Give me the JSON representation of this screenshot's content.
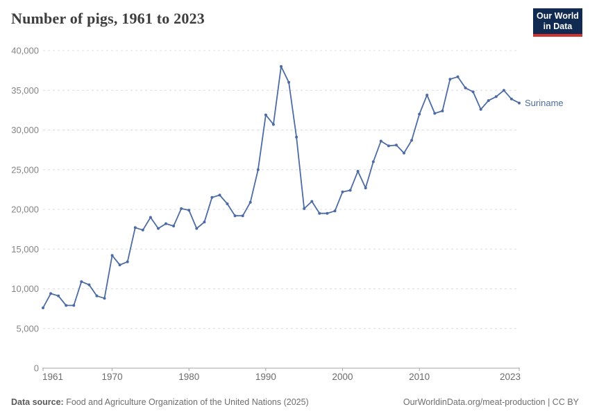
{
  "header": {
    "title": "Number of pigs, 1961 to 2023"
  },
  "logo": {
    "line1": "Our World",
    "line2": "in Data",
    "bg_color": "#102a52",
    "bar_color": "#d0342c"
  },
  "chart_data": {
    "type": "line",
    "title": "Number of pigs, 1961 to 2023",
    "entity": "Suriname",
    "x": [
      1961,
      1962,
      1963,
      1964,
      1965,
      1966,
      1967,
      1968,
      1969,
      1970,
      1971,
      1972,
      1973,
      1974,
      1975,
      1976,
      1977,
      1978,
      1979,
      1980,
      1981,
      1982,
      1983,
      1984,
      1985,
      1986,
      1987,
      1988,
      1989,
      1990,
      1991,
      1992,
      1993,
      1994,
      1995,
      1996,
      1997,
      1998,
      1999,
      2000,
      2001,
      2002,
      2003,
      2004,
      2005,
      2006,
      2007,
      2008,
      2009,
      2010,
      2011,
      2012,
      2013,
      2014,
      2015,
      2016,
      2017,
      2018,
      2019,
      2020,
      2021,
      2022,
      2023
    ],
    "values": [
      7600,
      9400,
      9100,
      7900,
      7900,
      10900,
      10500,
      9100,
      8800,
      14200,
      13000,
      13400,
      17700,
      17400,
      19000,
      17600,
      18200,
      17900,
      20100,
      19900,
      17600,
      18400,
      21500,
      21800,
      20700,
      19200,
      19200,
      20900,
      25000,
      31900,
      30700,
      38000,
      36000,
      29100,
      20100,
      21000,
      19500,
      19500,
      19800,
      22200,
      22400,
      24800,
      22700,
      26000,
      28600,
      28000,
      28100,
      27100,
      28700,
      32000,
      34400,
      32100,
      32400,
      36400,
      36700,
      35300,
      34800,
      32600,
      33700,
      34200,
      35000,
      33900,
      33400
    ],
    "xlabel": "",
    "ylabel": "",
    "xlim": [
      1961,
      2023
    ],
    "ylim": [
      0,
      40000
    ],
    "yticks": [
      0,
      5000,
      10000,
      15000,
      20000,
      25000,
      30000,
      35000,
      40000
    ],
    "xticks": [
      1961,
      1970,
      1980,
      1990,
      2000,
      2010,
      2023
    ],
    "grid": "horizontal-dashed",
    "legend_position": "end-of-line-label",
    "line_color": "#4c6ba3",
    "marker": "circle",
    "grid_color": "#dcdcdc",
    "axis_color": "#a3a3a3",
    "ytick_label_color": "#848484",
    "xtick_label_color": "#6b6b6b"
  },
  "footer": {
    "source_label": "Data source:",
    "source_text": " Food and Agriculture Organization of the United Nations (2025)",
    "credit": "OurWorldinData.org/meat-production | CC BY"
  }
}
